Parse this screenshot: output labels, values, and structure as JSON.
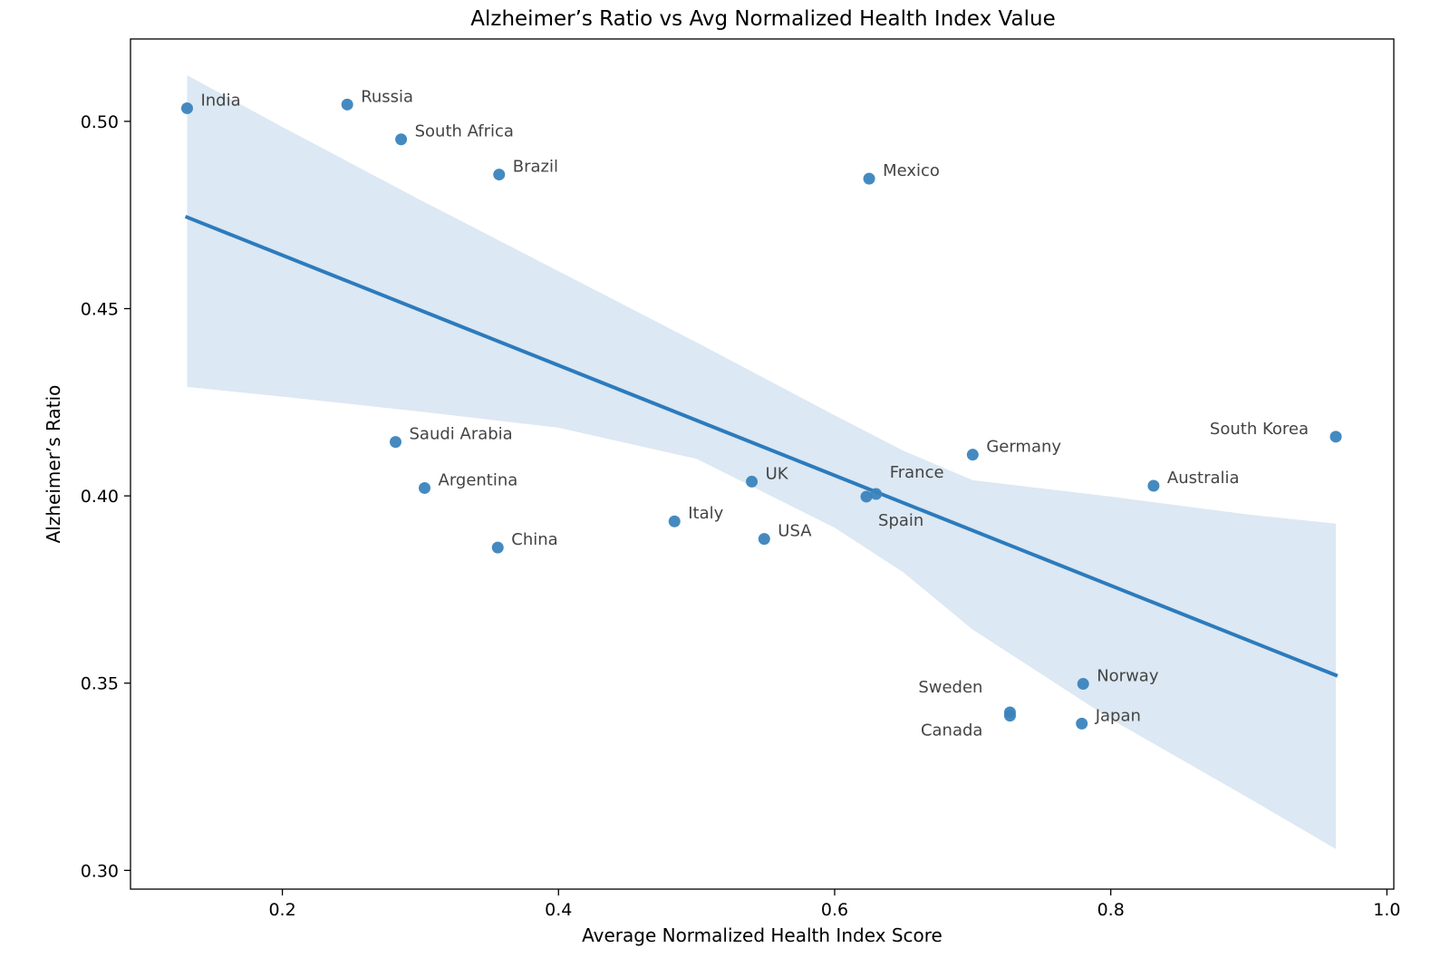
{
  "chart_data": {
    "type": "scatter",
    "title": "Alzheimer’s Ratio vs Avg Normalized Health Index Value",
    "xlabel": "Average Normalized Health Index Score",
    "ylabel": "Alzheimer’s Ratio",
    "xlim": [
      0.09,
      1.005
    ],
    "ylim": [
      0.295,
      0.522
    ],
    "xticks": [
      0.2,
      0.4,
      0.6,
      0.8,
      1.0
    ],
    "xtick_labels": [
      "0.2",
      "0.4",
      "0.6",
      "0.8",
      "1.0"
    ],
    "yticks": [
      0.3,
      0.35,
      0.4,
      0.45,
      0.5
    ],
    "ytick_labels": [
      "0.30",
      "0.35",
      "0.40",
      "0.45",
      "0.50"
    ],
    "grid": false,
    "point_color": "#3a84bd",
    "line_color": "#2c7bbd",
    "band_color": "#dce8f3",
    "points": [
      {
        "label": "India",
        "x": 0.131,
        "y": 0.5035,
        "anchor": "right"
      },
      {
        "label": "Russia",
        "x": 0.247,
        "y": 0.5045,
        "anchor": "right"
      },
      {
        "label": "South Africa",
        "x": 0.286,
        "y": 0.4952,
        "anchor": "right"
      },
      {
        "label": "Brazil",
        "x": 0.357,
        "y": 0.4858,
        "anchor": "right"
      },
      {
        "label": "Mexico",
        "x": 0.625,
        "y": 0.4847,
        "anchor": "right"
      },
      {
        "label": "Saudi Arabia",
        "x": 0.282,
        "y": 0.4144,
        "anchor": "right"
      },
      {
        "label": "Argentina",
        "x": 0.303,
        "y": 0.4021,
        "anchor": "right"
      },
      {
        "label": "China",
        "x": 0.356,
        "y": 0.3862,
        "anchor": "right"
      },
      {
        "label": "Italy",
        "x": 0.484,
        "y": 0.3932,
        "anchor": "right"
      },
      {
        "label": "UK",
        "x": 0.54,
        "y": 0.4038,
        "anchor": "right"
      },
      {
        "label": "USA",
        "x": 0.549,
        "y": 0.3885,
        "anchor": "right"
      },
      {
        "label": "France",
        "x": 0.63,
        "y": 0.4005,
        "anchor": "right-up"
      },
      {
        "label": "Spain",
        "x": 0.623,
        "y": 0.3998,
        "anchor": "right-down"
      },
      {
        "label": "Germany",
        "x": 0.7,
        "y": 0.411,
        "anchor": "right"
      },
      {
        "label": "Australia",
        "x": 0.831,
        "y": 0.4027,
        "anchor": "right"
      },
      {
        "label": "South Korea",
        "x": 0.963,
        "y": 0.4158,
        "anchor": "left"
      },
      {
        "label": "Norway",
        "x": 0.78,
        "y": 0.3498,
        "anchor": "right"
      },
      {
        "label": "Japan",
        "x": 0.779,
        "y": 0.3392,
        "anchor": "right"
      },
      {
        "label": "Sweden",
        "x": 0.727,
        "y": 0.3422,
        "anchor": "left-up"
      },
      {
        "label": "Canada",
        "x": 0.727,
        "y": 0.3413,
        "anchor": "left-down"
      }
    ],
    "regression": {
      "x": [
        0.131,
        0.963
      ],
      "y": [
        0.4744,
        0.3521
      ]
    },
    "confidence_band": {
      "x": [
        0.131,
        0.2,
        0.3,
        0.4,
        0.5,
        0.6,
        0.65,
        0.7,
        0.8,
        0.9,
        0.963
      ],
      "upper": [
        0.5123,
        0.4985,
        0.479,
        0.46,
        0.441,
        0.4215,
        0.412,
        0.4042,
        0.3998,
        0.395,
        0.3926
      ],
      "lower": [
        0.4291,
        0.4265,
        0.4225,
        0.4182,
        0.4099,
        0.3915,
        0.3795,
        0.3643,
        0.3404,
        0.3193,
        0.3057
      ]
    }
  }
}
